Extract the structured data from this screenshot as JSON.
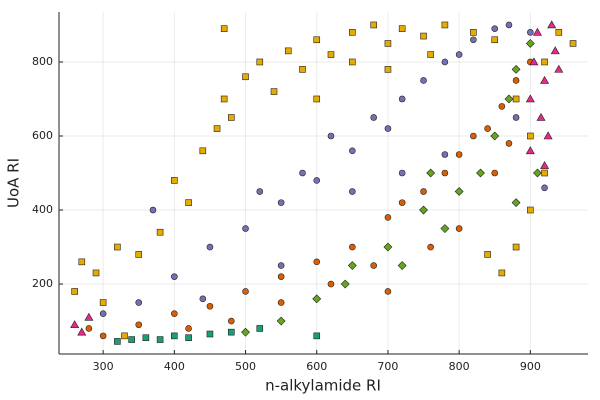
{
  "chart_data": {
    "type": "scatter",
    "x_label": "n-alkylamide RI",
    "y_label": "UoA RI",
    "xlim": [
      238,
      981
    ],
    "ylim": [
      11,
      935
    ],
    "xticks": [
      300,
      400,
      500,
      600,
      700,
      800,
      900
    ],
    "yticks": [
      200,
      400,
      600,
      800
    ],
    "grid": true,
    "series": [
      {
        "color": "#e6ab02",
        "marker": "square",
        "x": [
          260,
          270,
          290,
          300,
          320,
          350,
          380,
          400,
          420,
          440,
          460,
          470,
          480,
          500,
          520,
          540,
          560,
          580,
          600,
          620,
          650,
          680,
          700,
          720,
          750,
          780,
          820,
          850,
          880,
          900,
          920,
          940,
          960,
          860,
          880,
          900,
          920,
          840,
          470,
          330,
          600,
          650,
          700,
          760
        ],
        "y": [
          180,
          260,
          230,
          150,
          300,
          280,
          340,
          480,
          420,
          560,
          620,
          700,
          650,
          760,
          800,
          720,
          830,
          780,
          860,
          820,
          880,
          900,
          850,
          890,
          870,
          900,
          880,
          860,
          700,
          600,
          800,
          880,
          850,
          230,
          300,
          400,
          500,
          280,
          890,
          60,
          700,
          800,
          780,
          820
        ]
      },
      {
        "color": "#7570b3",
        "marker": "circle",
        "x": [
          300,
          350,
          370,
          400,
          450,
          500,
          520,
          550,
          580,
          600,
          620,
          650,
          680,
          700,
          720,
          750,
          780,
          800,
          820,
          850,
          870,
          900,
          880,
          780,
          550,
          440,
          650,
          920,
          720
        ],
        "y": [
          120,
          150,
          400,
          220,
          300,
          350,
          450,
          420,
          500,
          480,
          600,
          560,
          650,
          620,
          700,
          750,
          800,
          820,
          860,
          890,
          900,
          880,
          650,
          550,
          250,
          160,
          450,
          460,
          500
        ]
      },
      {
        "color": "#d95f02",
        "marker": "circle",
        "x": [
          280,
          300,
          350,
          400,
          450,
          500,
          550,
          600,
          650,
          700,
          720,
          750,
          780,
          800,
          820,
          840,
          860,
          880,
          900,
          850,
          760,
          680,
          620,
          550,
          480,
          420,
          700,
          800,
          870
        ],
        "y": [
          80,
          60,
          90,
          120,
          140,
          180,
          220,
          260,
          300,
          380,
          420,
          450,
          500,
          550,
          600,
          620,
          680,
          750,
          800,
          500,
          300,
          250,
          200,
          150,
          100,
          80,
          180,
          350,
          580
        ]
      },
      {
        "color": "#66a61e",
        "marker": "diamond",
        "x": [
          500,
          550,
          600,
          650,
          700,
          750,
          780,
          800,
          830,
          850,
          870,
          880,
          900,
          910,
          880,
          720,
          640,
          760
        ],
        "y": [
          70,
          100,
          160,
          250,
          300,
          400,
          350,
          450,
          500,
          600,
          700,
          780,
          850,
          500,
          420,
          250,
          200,
          500
        ]
      },
      {
        "color": "#e7298a",
        "marker": "triangle",
        "x": [
          260,
          270,
          280,
          900,
          905,
          910,
          915,
          920,
          925,
          930,
          935,
          900,
          920,
          940
        ],
        "y": [
          90,
          70,
          110,
          700,
          800,
          880,
          650,
          750,
          600,
          900,
          830,
          560,
          520,
          780
        ]
      },
      {
        "color": "#1b9e77",
        "marker": "square",
        "x": [
          320,
          340,
          360,
          380,
          400,
          420,
          450,
          480,
          520,
          600
        ],
        "y": [
          45,
          50,
          55,
          50,
          60,
          55,
          65,
          70,
          80,
          60
        ]
      }
    ]
  }
}
